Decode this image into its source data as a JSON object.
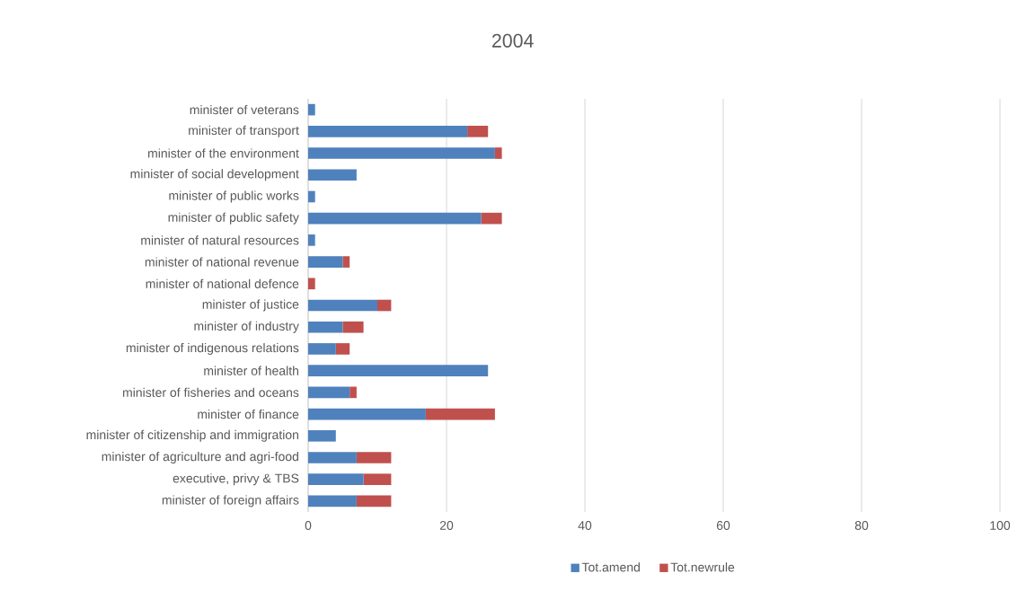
{
  "chart_data": {
    "type": "bar",
    "orientation": "horizontal",
    "stacked": true,
    "title": "2004",
    "categories": [
      "minister of veterans",
      "minister of transport",
      "minister of the environment",
      "minister of social development",
      "minister of public works",
      "minister of public safety",
      "minister of natural resources",
      "minister of national revenue",
      "minister of national defence",
      "minister of justice",
      "minister of industry",
      "minister of indigenous relations",
      "minister of health",
      "minister of fisheries and oceans",
      "minister of finance",
      "minister of citizenship and immigration",
      "minister of agriculture and agri-food",
      "executive, privy & TBS",
      "minister of foreign affairs"
    ],
    "series": [
      {
        "name": "Tot.amend",
        "color": "#4f81bd",
        "values": [
          1,
          23,
          27,
          7,
          1,
          25,
          1,
          5,
          0,
          10,
          5,
          4,
          26,
          6,
          17,
          4,
          7,
          8,
          7
        ]
      },
      {
        "name": "Tot.newrule",
        "color": "#c0504d",
        "values": [
          0,
          3,
          1,
          0,
          0,
          3,
          0,
          1,
          1,
          2,
          3,
          2,
          0,
          1,
          10,
          0,
          5,
          4,
          5
        ]
      }
    ],
    "xlim": [
      0,
      100
    ],
    "xticks": [
      0,
      20,
      40,
      60,
      80,
      100
    ],
    "grid": "x",
    "legend": "bottom"
  }
}
